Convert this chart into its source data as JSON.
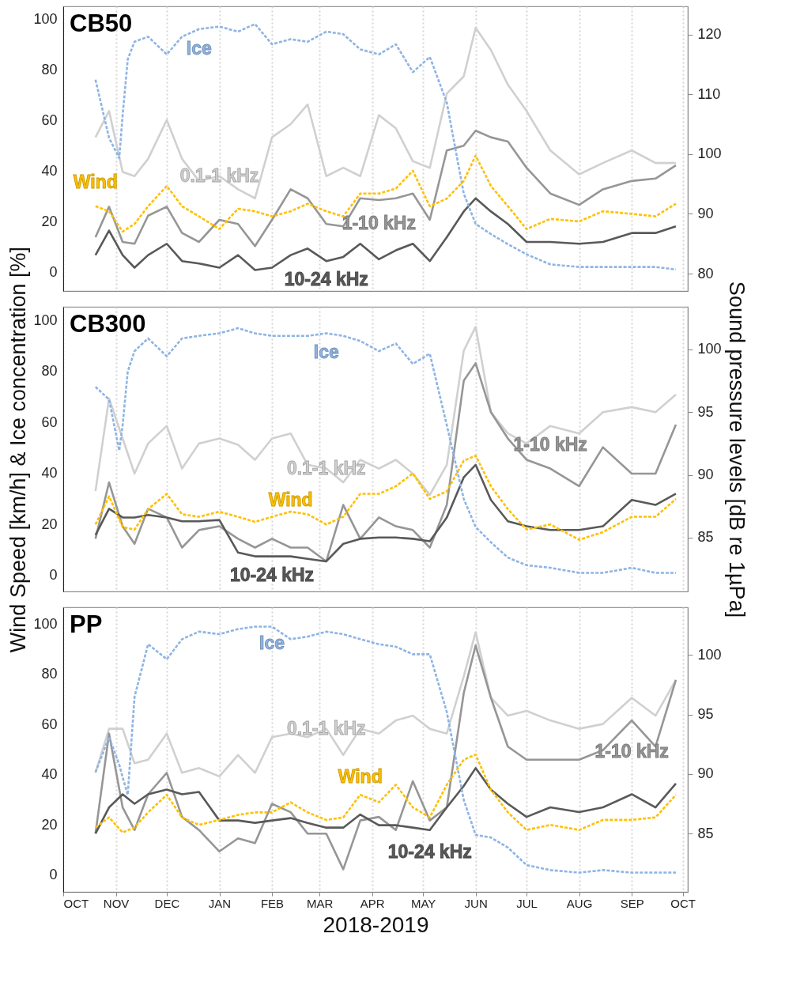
{
  "chart_data": [
    {
      "type": "line",
      "title": "CB50",
      "x": [
        "2018-10-20",
        "2018-10-28",
        "2018-11-05",
        "2018-11-12",
        "2018-11-20",
        "2018-12-01",
        "2018-12-10",
        "2018-12-20",
        "2019-01-01",
        "2019-01-12",
        "2019-01-22",
        "2019-02-01",
        "2019-02-12",
        "2019-02-22",
        "2019-03-05",
        "2019-03-15",
        "2019-03-25",
        "2019-04-05",
        "2019-04-15",
        "2019-04-25",
        "2019-05-05",
        "2019-05-15",
        "2019-05-25",
        "2019-06-01",
        "2019-06-10",
        "2019-06-20",
        "2019-07-01",
        "2019-07-15",
        "2019-08-01",
        "2019-08-15",
        "2019-09-01",
        "2019-09-15",
        "2019-09-27"
      ],
      "xlim": [
        "2018-10-01",
        "2019-10-04"
      ],
      "xticks": [
        {
          "value": "2018-10-01",
          "label": null
        },
        {
          "value": "2018-11-01",
          "label": null
        },
        {
          "value": "2018-12-01",
          "label": null
        },
        {
          "value": "2019-01-01",
          "label": null
        },
        {
          "value": "2019-02-01",
          "label": null
        },
        {
          "value": "2019-03-01",
          "label": null
        },
        {
          "value": "2019-04-01",
          "label": null
        },
        {
          "value": "2019-05-01",
          "label": null
        },
        {
          "value": "2019-06-01",
          "label": null
        },
        {
          "value": "2019-07-01",
          "label": null
        },
        {
          "value": "2019-08-01",
          "label": null
        },
        {
          "value": "2019-09-01",
          "label": null
        },
        {
          "value": "2019-10-01",
          "label": null
        }
      ],
      "ylim": [
        -7.5,
        105
      ],
      "yticks": [
        0,
        20,
        40,
        60,
        80,
        100
      ],
      "y2lim": [
        77.1,
        124.7
      ],
      "y2ticks": [
        80,
        90,
        100,
        110,
        120
      ],
      "grid": "x",
      "tick_labels": "y",
      "series": [
        {
          "name": "Ice",
          "color": "#8eb4e3",
          "line_style": "dashed",
          "x": [
            "2018-10-20",
            "2018-10-28",
            "2018-11-03",
            "2018-11-05",
            "2018-11-08",
            "2018-11-12",
            "2018-11-20",
            "2018-12-01",
            "2018-12-10",
            "2018-12-20",
            "2019-01-01",
            "2019-01-12",
            "2019-01-22",
            "2019-02-01",
            "2019-02-12",
            "2019-02-22",
            "2019-03-05",
            "2019-03-15",
            "2019-03-25",
            "2019-04-05",
            "2019-04-15",
            "2019-04-25",
            "2019-05-05",
            "2019-05-15",
            "2019-05-25",
            "2019-06-01",
            "2019-06-10",
            "2019-06-20",
            "2019-07-01",
            "2019-07-15",
            "2019-08-01",
            "2019-08-15",
            "2019-09-01",
            "2019-09-15",
            "2019-09-27"
          ],
          "values": [
            76,
            53,
            45,
            62,
            84,
            91,
            93,
            86,
            93,
            96,
            97,
            95,
            98,
            90,
            92,
            91,
            95,
            94,
            88,
            86,
            90,
            79,
            85,
            67,
            31,
            19,
            15,
            11,
            7,
            3,
            2,
            2,
            2,
            2,
            1
          ]
        },
        {
          "name": "Wind",
          "color": "#ffc000",
          "line_style": "dashed",
          "values": [
            26,
            24,
            16,
            19,
            26,
            34,
            26,
            22,
            17,
            25,
            24,
            22,
            24,
            27,
            24,
            22,
            31,
            31,
            33,
            40,
            26,
            29,
            36,
            46,
            34,
            26,
            17,
            21,
            20,
            24,
            23,
            22,
            27
          ]
        },
        {
          "name": "0.1-1 kHz",
          "color": "#d0d0d0",
          "axis": "y2",
          "line_style": "solid",
          "values": [
            102.8,
            107.2,
            97,
            96.3,
            99.2,
            105.7,
            99.2,
            95.5,
            96.3,
            94.1,
            92.6,
            102.8,
            105,
            108.3,
            96.3,
            97.7,
            96.3,
            106.5,
            104.3,
            98.8,
            97.7,
            110.1,
            113,
            121.1,
            117.4,
            111.6,
            107.2,
            100.6,
            96.6,
            98.5,
            100.6,
            98.5,
            98.5
          ]
        },
        {
          "name": "1-10 kHz",
          "color": "#969696",
          "axis": "y2",
          "line_style": "solid",
          "values": [
            86.1,
            91.2,
            85.3,
            85,
            89.7,
            91.2,
            86.8,
            85.3,
            89,
            88.3,
            84.6,
            89,
            94.1,
            92.6,
            88.3,
            87.9,
            92.6,
            92.3,
            92.6,
            93.4,
            89,
            100.6,
            101.4,
            103.9,
            102.8,
            102.1,
            97.7,
            93.4,
            91.5,
            94.1,
            95.5,
            95.9,
            98.1
          ]
        },
        {
          "name": "10-24 kHz",
          "color": "#595959",
          "axis": "y2",
          "line_style": "solid",
          "values": [
            83.1,
            87.2,
            83.1,
            81,
            83.1,
            85,
            82.1,
            81.7,
            81,
            83.1,
            80.6,
            81,
            83.1,
            84.2,
            82.1,
            82.8,
            85,
            82.4,
            83.9,
            85,
            82.1,
            86.1,
            90.4,
            92.6,
            90.4,
            88.3,
            85.3,
            85.3,
            85,
            85.3,
            86.8,
            86.8,
            87.9
          ]
        }
      ]
    },
    {
      "type": "line",
      "title": "CB300",
      "ylabel": "Wind Speed [km/h] & Ice concentration [%]",
      "y2label": "Sound pressure levels [dB re 1µPa]",
      "x": [
        "2018-10-20",
        "2018-10-28",
        "2018-11-05",
        "2018-11-12",
        "2018-11-20",
        "2018-12-01",
        "2018-12-10",
        "2018-12-20",
        "2019-01-01",
        "2019-01-12",
        "2019-01-22",
        "2019-02-01",
        "2019-02-12",
        "2019-02-22",
        "2019-03-05",
        "2019-03-15",
        "2019-03-25",
        "2019-04-05",
        "2019-04-15",
        "2019-04-25",
        "2019-05-05",
        "2019-05-15",
        "2019-05-25",
        "2019-06-01",
        "2019-06-10",
        "2019-06-20",
        "2019-07-01",
        "2019-07-15",
        "2019-08-01",
        "2019-08-15",
        "2019-09-01",
        "2019-09-15",
        "2019-09-27"
      ],
      "xlim": [
        "2018-10-01",
        "2019-10-04"
      ],
      "xticks": [
        {
          "value": "2018-10-01",
          "label": null
        },
        {
          "value": "2018-11-01",
          "label": null
        },
        {
          "value": "2018-12-01",
          "label": null
        },
        {
          "value": "2019-01-01",
          "label": null
        },
        {
          "value": "2019-02-01",
          "label": null
        },
        {
          "value": "2019-03-01",
          "label": null
        },
        {
          "value": "2019-04-01",
          "label": null
        },
        {
          "value": "2019-05-01",
          "label": null
        },
        {
          "value": "2019-06-01",
          "label": null
        },
        {
          "value": "2019-07-01",
          "label": null
        },
        {
          "value": "2019-08-01",
          "label": null
        },
        {
          "value": "2019-09-01",
          "label": null
        },
        {
          "value": "2019-10-01",
          "label": null
        }
      ],
      "ylim": [
        -6.3,
        105.4
      ],
      "yticks": [
        0,
        20,
        40,
        60,
        80,
        100
      ],
      "y2lim": [
        80.7,
        103.4
      ],
      "y2ticks": [
        85,
        90,
        95,
        100
      ],
      "grid": "x",
      "tick_labels": "y",
      "series": [
        {
          "name": "Ice",
          "color": "#8eb4e3",
          "line_style": "dashed",
          "x": [
            "2018-10-20",
            "2018-10-28",
            "2018-11-03",
            "2018-11-05",
            "2018-11-08",
            "2018-11-12",
            "2018-11-20",
            "2018-12-01",
            "2018-12-10",
            "2018-12-20",
            "2019-01-01",
            "2019-01-12",
            "2019-01-22",
            "2019-02-01",
            "2019-02-12",
            "2019-02-22",
            "2019-03-05",
            "2019-03-15",
            "2019-03-25",
            "2019-04-05",
            "2019-04-15",
            "2019-04-25",
            "2019-05-05",
            "2019-05-15",
            "2019-05-25",
            "2019-06-01",
            "2019-06-10",
            "2019-06-20",
            "2019-07-01",
            "2019-07-15",
            "2019-08-01",
            "2019-08-15",
            "2019-09-01",
            "2019-09-15",
            "2019-09-27"
          ],
          "values": [
            74,
            69,
            49,
            59,
            80,
            88,
            93,
            86,
            93,
            94,
            95,
            97,
            95,
            94,
            94,
            94,
            95,
            94,
            92,
            88,
            91,
            83,
            87,
            59,
            30,
            19,
            13,
            7,
            4,
            3,
            1,
            1,
            3,
            1,
            1
          ]
        },
        {
          "name": "Wind",
          "color": "#ffc000",
          "line_style": "dashed",
          "values": [
            20,
            31,
            19,
            18,
            26,
            32,
            24,
            23,
            25,
            23,
            21,
            23,
            25,
            24,
            20,
            23,
            32,
            32,
            35,
            40,
            30,
            33,
            45,
            47,
            35,
            26,
            18,
            20,
            14,
            17,
            23,
            23,
            30
          ]
        },
        {
          "name": "0.1-1 kHz",
          "color": "#d0d0d0",
          "axis": "y2",
          "line_style": "solid",
          "values": [
            88.7,
            96.1,
            92.9,
            90.1,
            92.5,
            93.9,
            90.5,
            92.5,
            92.9,
            92.4,
            91.2,
            92.9,
            93.3,
            90.8,
            90.5,
            89.4,
            91.2,
            90.5,
            91.2,
            90.1,
            88.4,
            90.8,
            99.9,
            101.8,
            95,
            93.3,
            92.5,
            93.9,
            93.3,
            95,
            95.4,
            95,
            96.4
          ]
        },
        {
          "name": "1-10 kHz",
          "color": "#969696",
          "axis": "y2",
          "line_style": "solid",
          "values": [
            84.9,
            89.4,
            85.9,
            84.5,
            87.3,
            86.6,
            84.2,
            85.6,
            85.9,
            84.9,
            84.2,
            84.9,
            84.2,
            84.2,
            83.1,
            87.6,
            84.9,
            86.6,
            85.9,
            85.6,
            84.2,
            87.6,
            97.5,
            98.9,
            95,
            92.9,
            91.2,
            90.5,
            89.1,
            92.2,
            90.1,
            90.1,
            94
          ]
        },
        {
          "name": "10-24 kHz",
          "color": "#595959",
          "axis": "y2",
          "line_style": "solid",
          "values": [
            85.2,
            87.3,
            86.6,
            86.6,
            86.8,
            86.6,
            86.3,
            86.3,
            86.4,
            83.8,
            83.5,
            83.5,
            83.5,
            83.3,
            83.1,
            84.5,
            84.9,
            85,
            85,
            84.9,
            84.7,
            86.6,
            89.8,
            90.8,
            88,
            86.3,
            85.9,
            85.6,
            85.6,
            85.9,
            88,
            87.6,
            88.5
          ]
        }
      ]
    },
    {
      "type": "line",
      "title": "PP",
      "xlabel": "2018-2019",
      "x": [
        "2018-10-20",
        "2018-10-28",
        "2018-11-05",
        "2018-11-12",
        "2018-11-20",
        "2018-12-01",
        "2018-12-10",
        "2018-12-20",
        "2019-01-01",
        "2019-01-12",
        "2019-01-22",
        "2019-02-01",
        "2019-02-12",
        "2019-02-22",
        "2019-03-05",
        "2019-03-15",
        "2019-03-25",
        "2019-04-05",
        "2019-04-15",
        "2019-04-25",
        "2019-05-05",
        "2019-05-15",
        "2019-05-25",
        "2019-06-01",
        "2019-06-10",
        "2019-06-20",
        "2019-07-01",
        "2019-07-15",
        "2019-08-01",
        "2019-08-15",
        "2019-09-01",
        "2019-09-15",
        "2019-09-27"
      ],
      "xlim": [
        "2018-10-01",
        "2019-10-04"
      ],
      "xticks": [
        {
          "value": "2018-10-01",
          "label": "OCT"
        },
        {
          "value": "2018-11-01",
          "label": "NOV"
        },
        {
          "value": "2018-12-01",
          "label": "DEC"
        },
        {
          "value": "2019-01-01",
          "label": "JAN"
        },
        {
          "value": "2019-02-01",
          "label": "FEB"
        },
        {
          "value": "2019-03-01",
          "label": "MAR"
        },
        {
          "value": "2019-04-01",
          "label": "APR"
        },
        {
          "value": "2019-05-01",
          "label": "MAY"
        },
        {
          "value": "2019-06-01",
          "label": "JUN"
        },
        {
          "value": "2019-07-01",
          "label": "JUL"
        },
        {
          "value": "2019-08-01",
          "label": "AUG"
        },
        {
          "value": "2019-09-01",
          "label": "SEP"
        },
        {
          "value": "2019-10-01",
          "label": "OCT"
        }
      ],
      "ylim": [
        -6.7,
        106.7
      ],
      "yticks": [
        0,
        20,
        40,
        60,
        80,
        100
      ],
      "y2lim": [
        80.1,
        104
      ],
      "y2ticks": [
        85,
        90,
        95,
        100
      ],
      "grid": "x",
      "series": [
        {
          "name": "Ice",
          "color": "#8eb4e3",
          "line_style": "dashed",
          "x": [
            "2018-10-20",
            "2018-10-28",
            "2018-11-03",
            "2018-11-05",
            "2018-11-08",
            "2018-11-12",
            "2018-11-20",
            "2018-12-01",
            "2018-12-10",
            "2018-12-20",
            "2019-01-01",
            "2019-01-12",
            "2019-01-22",
            "2019-02-01",
            "2019-02-12",
            "2019-02-22",
            "2019-03-05",
            "2019-03-15",
            "2019-03-25",
            "2019-04-05",
            "2019-04-15",
            "2019-04-25",
            "2019-05-05",
            "2019-05-15",
            "2019-05-25",
            "2019-06-01",
            "2019-06-10",
            "2019-06-20",
            "2019-07-01",
            "2019-07-15",
            "2019-08-01",
            "2019-08-15",
            "2019-09-01",
            "2019-09-15",
            "2019-09-27"
          ],
          "values": [
            41,
            55,
            44,
            39,
            32,
            71,
            92,
            86,
            94,
            97,
            96,
            98,
            99,
            99,
            94,
            95,
            97,
            96,
            94,
            92,
            91,
            88,
            88,
            65,
            30,
            16,
            15,
            11,
            4,
            2,
            1,
            2,
            1,
            1,
            1
          ]
        },
        {
          "name": "Wind",
          "color": "#ffc000",
          "line_style": "dashed",
          "values": [
            19,
            23,
            17,
            19,
            25,
            32,
            23,
            20,
            22,
            24,
            25,
            25,
            29,
            25,
            22,
            23,
            32,
            29,
            36,
            27,
            23,
            36,
            46,
            48,
            34,
            25,
            18,
            20,
            18,
            22,
            22,
            23,
            32
          ]
        },
        {
          "name": "0.1-1 kHz",
          "color": "#d0d0d0",
          "axis": "y2",
          "line_style": "solid",
          "values": [
            90.1,
            93.8,
            93.8,
            90.9,
            91.2,
            93.4,
            90.1,
            90.5,
            89.8,
            91.6,
            90.1,
            93.1,
            93.4,
            93.1,
            93.8,
            91.6,
            93.8,
            93.4,
            94.5,
            94.9,
            93.8,
            93.4,
            98.2,
            101.9,
            96.4,
            94.9,
            95.3,
            94.5,
            93.8,
            94.2,
            96.4,
            94.9,
            97.9
          ]
        },
        {
          "name": "1-10 kHz",
          "color": "#969696",
          "axis": "y2",
          "line_style": "solid",
          "values": [
            85,
            93.4,
            87.2,
            85.3,
            88.3,
            90.1,
            86.4,
            85.3,
            83.5,
            84.6,
            84.2,
            87.5,
            86.8,
            85,
            85,
            82,
            86.1,
            86.4,
            85.3,
            89.4,
            86.1,
            87.2,
            96.8,
            100.8,
            96.4,
            92.3,
            91.2,
            91.2,
            91.2,
            92,
            94.5,
            92.3,
            97.9
          ]
        },
        {
          "name": "10-24 kHz",
          "color": "#595959",
          "axis": "y2",
          "line_style": "solid",
          "values": [
            85,
            87.2,
            88.3,
            87.5,
            88.3,
            88.7,
            88.3,
            88.5,
            86.1,
            86.1,
            85.9,
            86.1,
            86.3,
            85.9,
            85.5,
            85.5,
            86.6,
            85.7,
            85.7,
            85.5,
            85.3,
            87.2,
            89,
            90.5,
            88.7,
            87.5,
            86.4,
            87.2,
            86.8,
            87.2,
            88.3,
            87.2,
            89.2
          ]
        }
      ]
    }
  ]
}
